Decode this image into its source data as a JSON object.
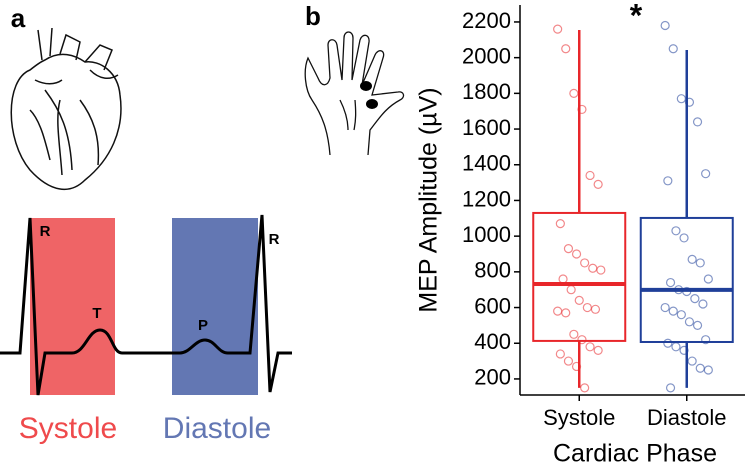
{
  "panel_labels": [
    "a",
    "b"
  ],
  "ecg": {
    "labels": [
      "R",
      "T",
      "P",
      "R"
    ],
    "phases": [
      "Systole",
      "Diastole"
    ]
  },
  "chart_data": {
    "type": "box",
    "categories": [
      "Systole",
      "Diastole"
    ],
    "xlabel": "Cardiac Phase",
    "ylabel": "MEP Amplitude (µV)",
    "annotation": "*",
    "ylim": [
      110,
      2295
    ],
    "yticks": [
      200,
      400,
      600,
      800,
      1000,
      1200,
      1400,
      1600,
      1800,
      2000,
      2200
    ],
    "series": [
      {
        "name": "Systole",
        "color": "#e8262a",
        "whisker_low": 150,
        "q1": 413,
        "median": 732,
        "q3": 1130,
        "whisker_high": 2155,
        "points": [
          2160,
          2050,
          1800,
          1710,
          1340,
          1290,
          1070,
          930,
          900,
          850,
          820,
          810,
          760,
          700,
          640,
          600,
          590,
          580,
          570,
          450,
          420,
          380,
          360,
          340,
          300,
          270,
          150
        ]
      },
      {
        "name": "Diastole",
        "color": "#1f3f99",
        "whisker_low": 150,
        "q1": 407,
        "median": 699,
        "q3": 1102,
        "whisker_high": 2043,
        "points": [
          2180,
          2050,
          1770,
          1750,
          1640,
          1350,
          1310,
          1030,
          990,
          870,
          850,
          760,
          740,
          700,
          690,
          650,
          620,
          600,
          580,
          560,
          520,
          500,
          420,
          400,
          380,
          360,
          300,
          260,
          250,
          150
        ]
      }
    ]
  }
}
